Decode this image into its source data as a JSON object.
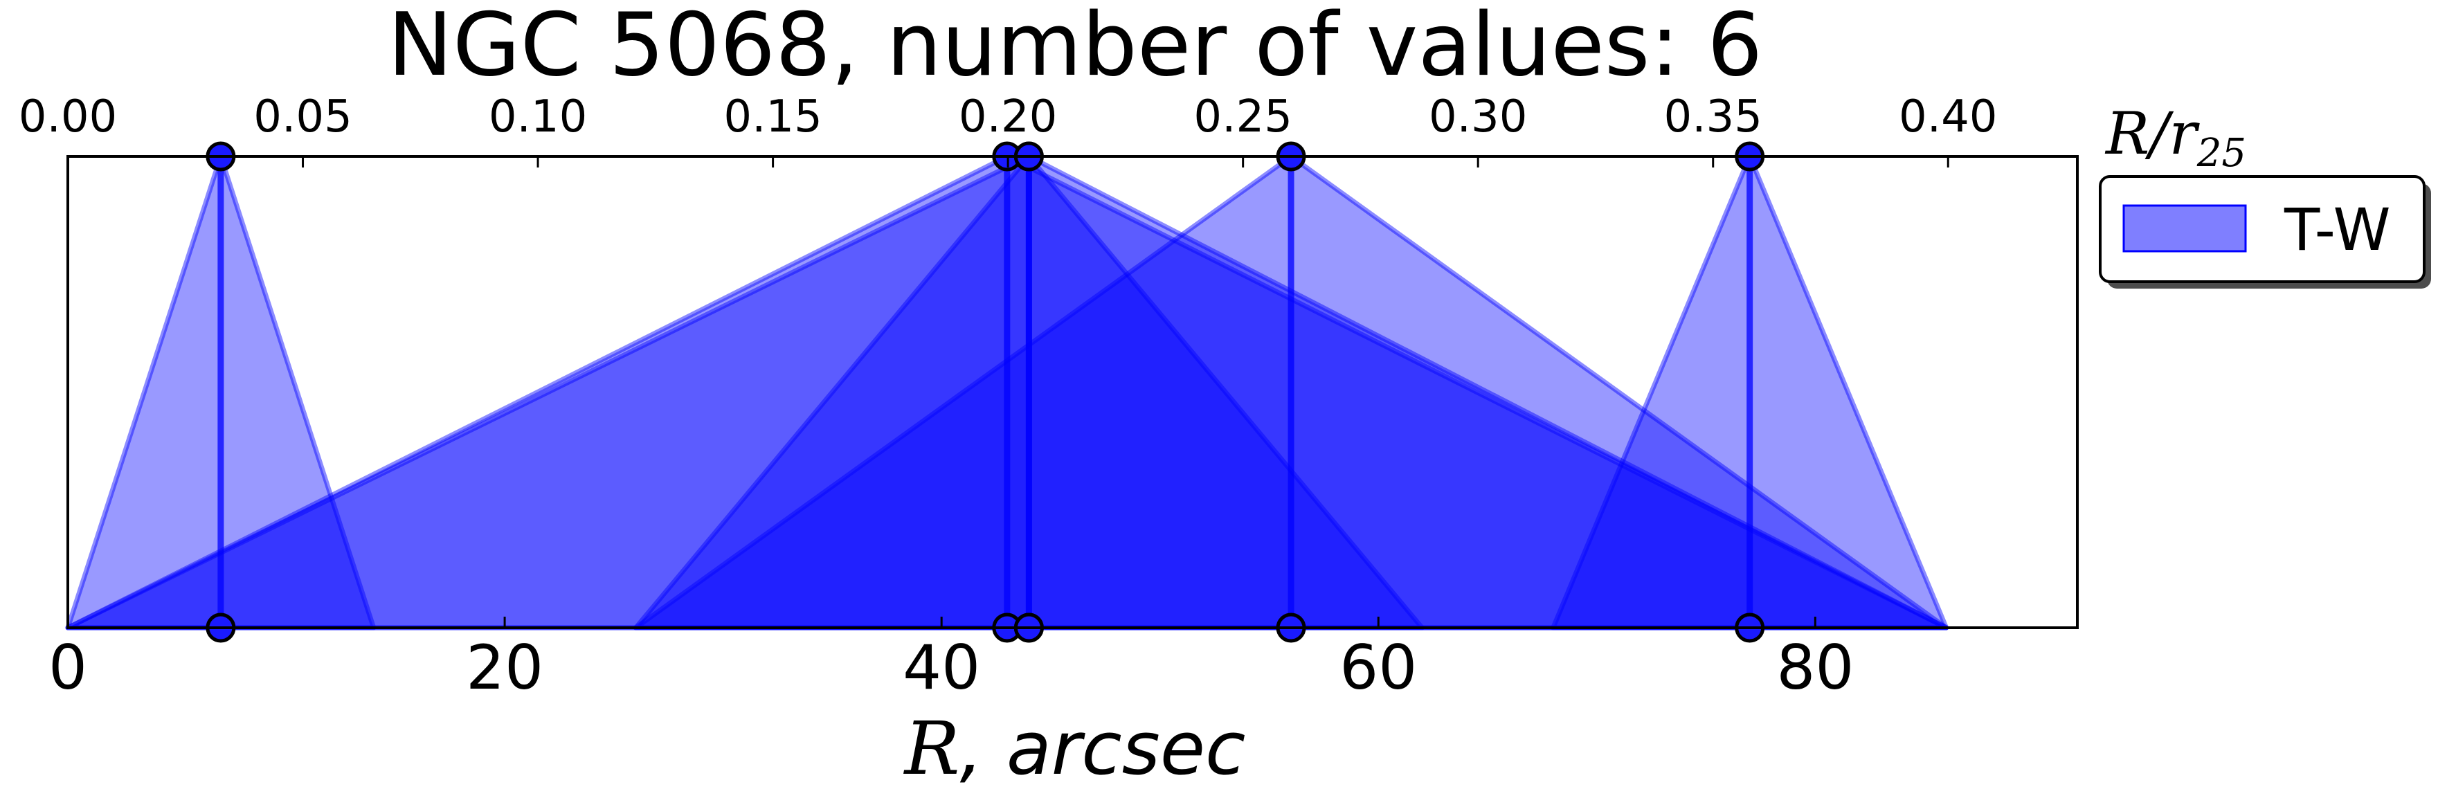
{
  "chart_data": {
    "type": "triangles",
    "title": "NGC 5068, number of values: 6",
    "xlabel_symbol": "R",
    "xlabel_rest": ", arcsec",
    "top_axis_label_symbol": "R/r",
    "top_axis_label_sub": "25",
    "xlim": [
      0,
      92
    ],
    "ylim": [
      0,
      1
    ],
    "top_xlim": [
      0,
      0.4275
    ],
    "x_ticks": [
      0,
      20,
      40,
      60,
      80
    ],
    "x_tick_labels": [
      "0",
      "20",
      "40",
      "60",
      "80"
    ],
    "top_ticks": [
      0.0,
      0.05,
      0.1,
      0.15,
      0.2,
      0.25,
      0.3,
      0.35,
      0.4
    ],
    "top_tick_labels": [
      "0.00",
      "0.05",
      "0.10",
      "0.15",
      "0.20",
      "0.25",
      "0.30",
      "0.35",
      "0.40"
    ],
    "color": "#0000ff",
    "fill_alpha": 0.4,
    "series": [
      {
        "name": "T-W",
        "triangles": [
          {
            "left": 0,
            "peak": 7,
            "right": 14
          },
          {
            "left": 0,
            "peak": 43,
            "right": 86
          },
          {
            "left": 26,
            "peak": 44,
            "right": 62
          },
          {
            "left": 0,
            "peak": 44,
            "right": 86
          },
          {
            "left": 26,
            "peak": 56,
            "right": 86
          },
          {
            "left": 68,
            "peak": 77,
            "right": 86
          }
        ]
      }
    ],
    "legend": {
      "label": "T-W",
      "placement": "upper-right-outside"
    }
  }
}
